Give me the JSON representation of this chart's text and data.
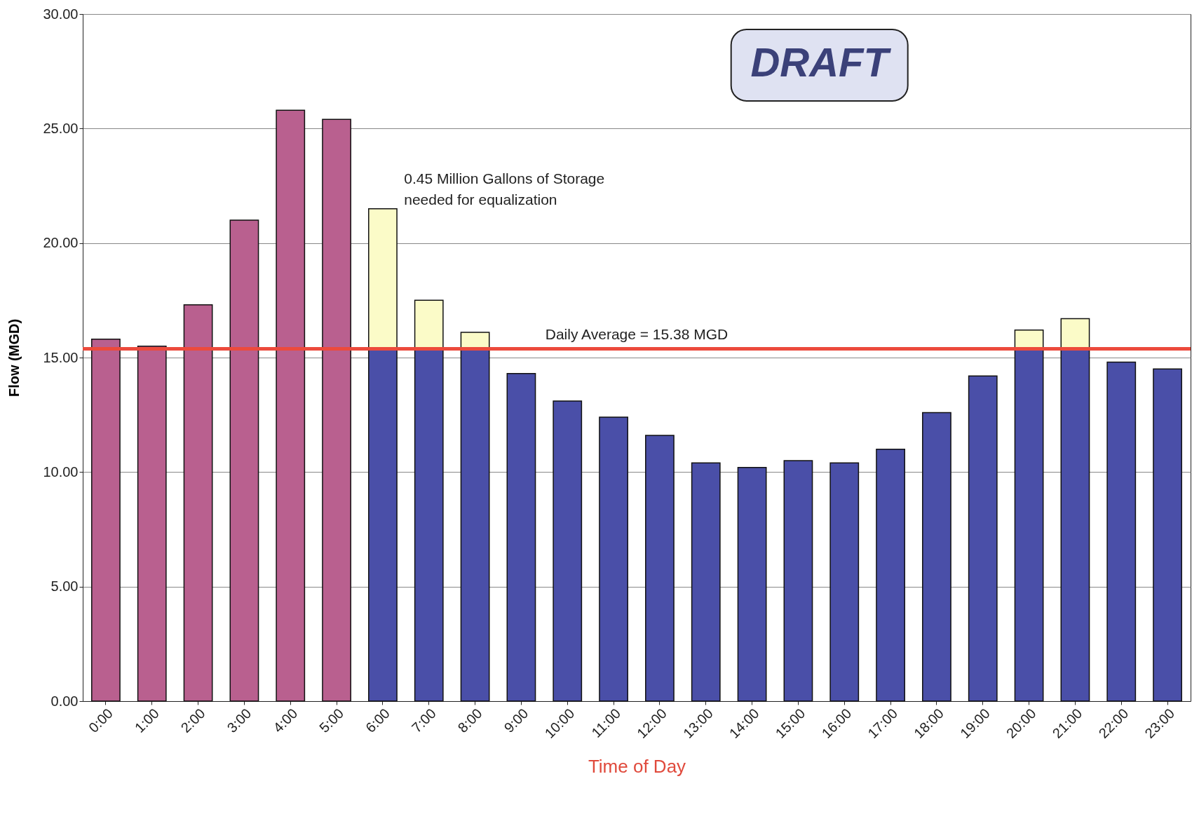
{
  "chart_data": {
    "type": "bar",
    "stacked": true,
    "xlabel": "Time of Day",
    "ylabel": "Flow (MGD)",
    "categories": [
      "0:00",
      "1:00",
      "2:00",
      "3:00",
      "4:00",
      "5:00",
      "6:00",
      "7:00",
      "8:00",
      "9:00",
      "10:00",
      "11:00",
      "12:00",
      "13:00",
      "14:00",
      "15:00",
      "16:00",
      "17:00",
      "18:00",
      "19:00",
      "20:00",
      "21:00",
      "22:00",
      "23:00"
    ],
    "series": [
      {
        "color": "#b9608f",
        "values": [
          15.8,
          15.5,
          17.3,
          21.0,
          25.8,
          25.4,
          null,
          null,
          null,
          null,
          null,
          null,
          null,
          null,
          null,
          null,
          null,
          null,
          null,
          null,
          null,
          null,
          null,
          null
        ]
      },
      {
        "color": "#4a4fa8",
        "values": [
          null,
          null,
          null,
          null,
          null,
          null,
          15.4,
          15.4,
          15.4,
          14.3,
          13.1,
          12.4,
          11.6,
          10.4,
          10.2,
          10.5,
          10.4,
          11.0,
          12.6,
          14.2,
          15.4,
          15.4,
          14.8,
          14.5
        ]
      },
      {
        "color": "#fbfbc8",
        "values": [
          null,
          null,
          null,
          null,
          null,
          null,
          6.1,
          2.1,
          0.7,
          null,
          null,
          null,
          null,
          null,
          null,
          null,
          null,
          null,
          null,
          null,
          0.8,
          1.3,
          null,
          null
        ]
      }
    ],
    "ylim": [
      0,
      30
    ],
    "yticks": [
      {
        "value": 0,
        "label": "0.00"
      },
      {
        "value": 5,
        "label": "5.00"
      },
      {
        "value": 10,
        "label": "10.00"
      },
      {
        "value": 15,
        "label": "15.00"
      },
      {
        "value": 20,
        "label": "20.00"
      },
      {
        "value": 25,
        "label": "25.00"
      },
      {
        "value": 30,
        "label": "30.00"
      }
    ],
    "grid": "y",
    "ref_lines": [
      {
        "axis": "y",
        "value": 15.38,
        "label": "Daily Average = 15.38 MGD",
        "color": "#ec4a3c"
      }
    ],
    "annotations": [
      "0.45 Million Gallons of Storage\nneeded for equalization",
      "DRAFT"
    ]
  }
}
